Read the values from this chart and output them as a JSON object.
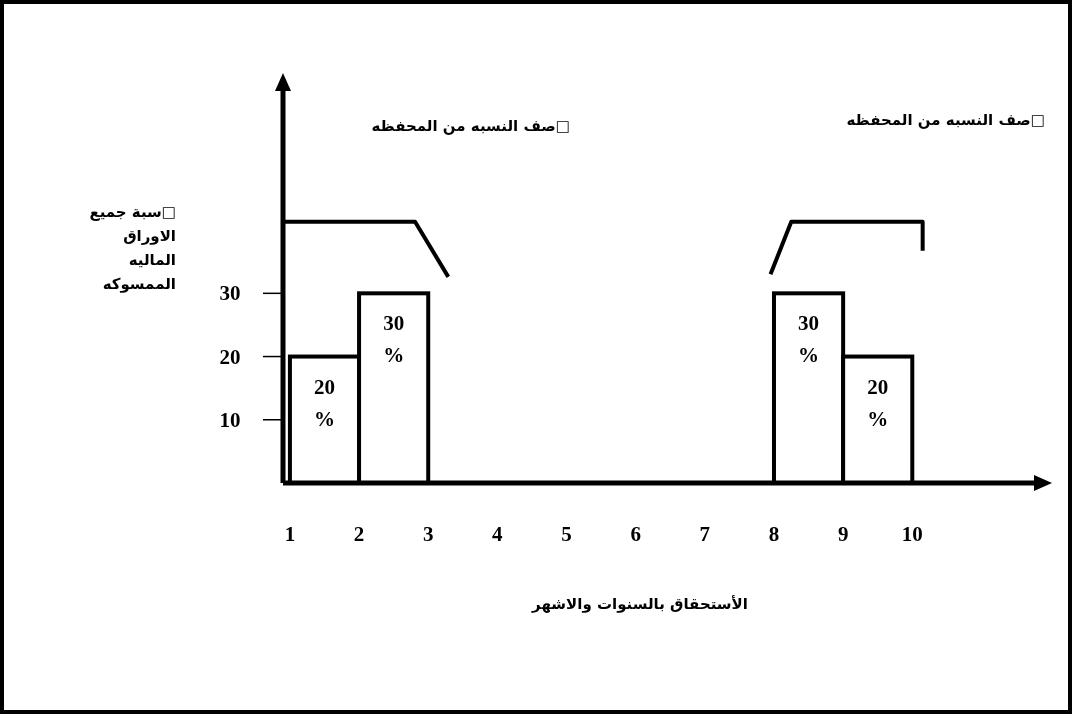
{
  "chart_data": {
    "type": "histogram",
    "bins": [
      1,
      2,
      3,
      4,
      5,
      6,
      7,
      8,
      9,
      10
    ],
    "values": [
      20,
      30,
      0,
      0,
      0,
      0,
      0,
      30,
      20
    ],
    "value_labels": [
      "20 %",
      "30 %",
      null,
      null,
      null,
      null,
      null,
      "30 %",
      "20 %"
    ],
    "color": "#000000",
    "xlim": [
      0.9,
      11.76
    ],
    "xticks": [
      1,
      2,
      3,
      4,
      5,
      6,
      7,
      8,
      9,
      10
    ],
    "ylim": [
      0,
      62
    ],
    "yticks": [
      10,
      20,
      30
    ],
    "xlabel": "الأستحقاق بالسنوات والاشهر",
    "ylabel": "□سبة جميع الاوراق الماليه الممسوكه",
    "annotations": [
      "□صف النسبه من المحفظه",
      "□صف النسبه من المحفظه"
    ]
  }
}
